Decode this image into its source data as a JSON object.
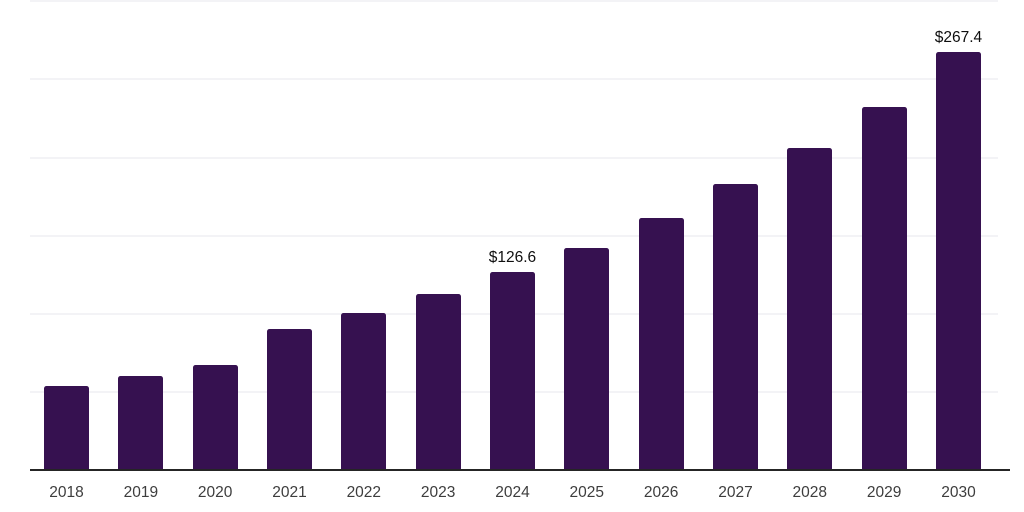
{
  "chart_data": {
    "type": "bar",
    "title": "",
    "categories": [
      "2018",
      "2019",
      "2020",
      "2021",
      "2022",
      "2023",
      "2024",
      "2025",
      "2026",
      "2027",
      "2028",
      "2029",
      "2030"
    ],
    "values": [
      53.8,
      60.1,
      67.2,
      90.1,
      100.8,
      112.7,
      126.6,
      142.3,
      161.2,
      182.9,
      206.0,
      232.6,
      267.4
    ],
    "data_labels": [
      {
        "category": "2024",
        "text": "$126.6"
      },
      {
        "category": "2030",
        "text": "$267.4"
      }
    ],
    "xlabel": "",
    "ylabel": "",
    "ylim": [
      0,
      300
    ],
    "grid_step": 50,
    "grid": "horizontal gridlines, y-axis tick labels hidden",
    "legend": "none",
    "bar_color": "#361150",
    "axis_color": "#252525",
    "gridline_color": "#f3f3f6",
    "value_label_color": "#0f0f0f",
    "tick_label_color": "#3d3d3d",
    "background_color": "#ffffff"
  }
}
